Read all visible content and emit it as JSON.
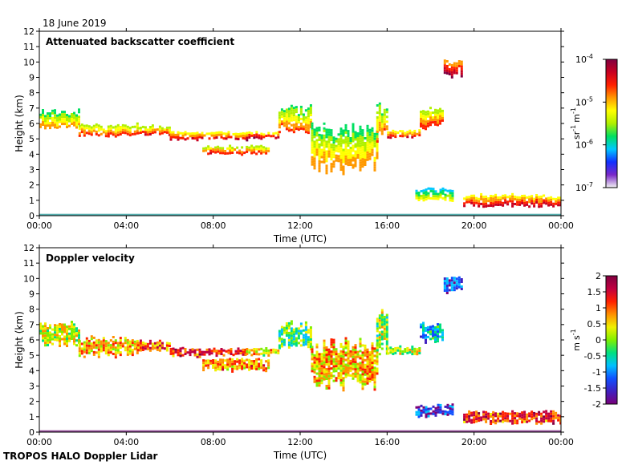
{
  "figure": {
    "date": "18 June 2019",
    "footer": "TROPOS HALO Doppler Lidar"
  },
  "chart_data": [
    {
      "type": "heatmap",
      "title": "Attenuated backscatter coefficient",
      "xlabel": "Time (UTC)",
      "ylabel": "Height (km)",
      "xlim": [
        0,
        24
      ],
      "ylim": [
        0,
        12
      ],
      "x_ticks": [
        "00:00",
        "04:00",
        "08:00",
        "12:00",
        "16:00",
        "20:00",
        "00:00"
      ],
      "y_ticks": [
        "0",
        "1",
        "2",
        "3",
        "4",
        "5",
        "6",
        "7",
        "8",
        "9",
        "10",
        "11",
        "12"
      ],
      "colorbar": {
        "scale": "log",
        "range": [
          1e-07,
          0.0001
        ],
        "tick_labels": [
          "10",
          "10",
          "10",
          "10"
        ],
        "tick_exponents": [
          "-4",
          "-5",
          "-6",
          "-7"
        ],
        "unit_parts": [
          "sr",
          "-1",
          "m",
          "-1"
        ]
      },
      "cloud_layers": [
        {
          "x_start": 0.0,
          "x_end": 1.8,
          "base_km": 5.6,
          "top_km": 7.0,
          "value_log": -5.3
        },
        {
          "x_start": 1.8,
          "x_end": 4.5,
          "base_km": 5.2,
          "top_km": 6.0,
          "value_log": -5.0
        },
        {
          "x_start": 4.5,
          "x_end": 6.0,
          "base_km": 5.3,
          "top_km": 5.9,
          "value_log": -4.9
        },
        {
          "x_start": 6.0,
          "x_end": 9.5,
          "base_km": 5.0,
          "top_km": 5.5,
          "value_log": -4.8
        },
        {
          "x_start": 7.5,
          "x_end": 10.5,
          "base_km": 4.0,
          "top_km": 4.6,
          "value_log": -4.9
        },
        {
          "x_start": 9.5,
          "x_end": 11.0,
          "base_km": 5.0,
          "top_km": 5.5,
          "value_log": -4.6
        },
        {
          "x_start": 11.0,
          "x_end": 12.5,
          "base_km": 5.5,
          "top_km": 7.2,
          "value_log": -5.2
        },
        {
          "x_start": 12.5,
          "x_end": 15.5,
          "base_km": 3.0,
          "top_km": 6.0,
          "value_log": -5.3
        },
        {
          "x_start": 15.5,
          "x_end": 16.0,
          "base_km": 5.0,
          "top_km": 7.5,
          "value_log": -5.2
        },
        {
          "x_start": 16.0,
          "x_end": 17.5,
          "base_km": 5.1,
          "top_km": 5.6,
          "value_log": -4.8
        },
        {
          "x_start": 17.5,
          "x_end": 18.5,
          "base_km": 5.8,
          "top_km": 7.0,
          "value_log": -5.0
        },
        {
          "x_start": 18.6,
          "x_end": 19.4,
          "base_km": 9.1,
          "top_km": 10.2,
          "value_log": -4.5
        },
        {
          "x_start": 17.3,
          "x_end": 19.0,
          "base_km": 1.0,
          "top_km": 1.8,
          "value_log": -5.6
        },
        {
          "x_start": 19.5,
          "x_end": 24.0,
          "base_km": 0.6,
          "top_km": 1.4,
          "value_log": -4.7
        }
      ]
    },
    {
      "type": "heatmap",
      "title": "Doppler velocity",
      "xlabel": "Time (UTC)",
      "ylabel": "Height (km)",
      "xlim": [
        0,
        24
      ],
      "ylim": [
        0,
        12
      ],
      "x_ticks": [
        "00:00",
        "04:00",
        "08:00",
        "12:00",
        "16:00",
        "20:00",
        "00:00"
      ],
      "y_ticks": [
        "0",
        "1",
        "2",
        "3",
        "4",
        "5",
        "6",
        "7",
        "8",
        "9",
        "10",
        "11",
        "12"
      ],
      "colorbar": {
        "scale": "linear",
        "range": [
          -2,
          2
        ],
        "tick_labels": [
          "2",
          "1.5",
          "1",
          "0.5",
          "0",
          "-0.5",
          "-1",
          "-1.5",
          "-2"
        ],
        "unit_parts": [
          "m",
          "s",
          "-1"
        ]
      },
      "cloud_layers": [
        {
          "x_start": 0.0,
          "x_end": 1.8,
          "base_km": 5.6,
          "top_km": 7.2,
          "value_ms": 0.2
        },
        {
          "x_start": 1.8,
          "x_end": 4.5,
          "base_km": 5.0,
          "top_km": 6.2,
          "value_ms": 0.6
        },
        {
          "x_start": 4.5,
          "x_end": 6.0,
          "base_km": 5.3,
          "top_km": 6.0,
          "value_ms": 1.0
        },
        {
          "x_start": 6.0,
          "x_end": 9.5,
          "base_km": 5.0,
          "top_km": 5.5,
          "value_ms": 1.2
        },
        {
          "x_start": 7.5,
          "x_end": 10.5,
          "base_km": 4.0,
          "top_km": 4.8,
          "value_ms": 0.8
        },
        {
          "x_start": 9.5,
          "x_end": 11.0,
          "base_km": 5.0,
          "top_km": 5.5,
          "value_ms": 0.4
        },
        {
          "x_start": 11.0,
          "x_end": 12.5,
          "base_km": 5.5,
          "top_km": 7.2,
          "value_ms": -0.2
        },
        {
          "x_start": 12.5,
          "x_end": 15.5,
          "base_km": 3.0,
          "top_km": 6.0,
          "value_ms": 0.6
        },
        {
          "x_start": 15.5,
          "x_end": 16.0,
          "base_km": 5.0,
          "top_km": 8.0,
          "value_ms": 0.0
        },
        {
          "x_start": 16.0,
          "x_end": 17.5,
          "base_km": 5.1,
          "top_km": 5.6,
          "value_ms": 0.3
        },
        {
          "x_start": 17.5,
          "x_end": 18.5,
          "base_km": 5.8,
          "top_km": 7.2,
          "value_ms": -0.8
        },
        {
          "x_start": 18.6,
          "x_end": 19.4,
          "base_km": 9.1,
          "top_km": 10.2,
          "value_ms": -1.3
        },
        {
          "x_start": 17.3,
          "x_end": 19.0,
          "base_km": 1.0,
          "top_km": 1.8,
          "value_ms": -1.5
        },
        {
          "x_start": 19.5,
          "x_end": 24.0,
          "base_km": 0.6,
          "top_km": 1.4,
          "value_ms": 1.2
        }
      ]
    }
  ],
  "colors": {
    "backscatter_scale": [
      "#f4f4f4",
      "#7a28c8",
      "#1030ff",
      "#00c8ff",
      "#00e060",
      "#b0f000",
      "#ffff00",
      "#ff9900",
      "#ff2000",
      "#c80020",
      "#800040"
    ],
    "velocity_scale": [
      "#7a007a",
      "#4020c0",
      "#1050ff",
      "#00c0ff",
      "#00e080",
      "#80f000",
      "#f0f000",
      "#ff9000",
      "#ff2000",
      "#c00040",
      "#800040"
    ],
    "surface_line": "#2a9a9a",
    "surface_line_velocity": "#7a2080"
  }
}
